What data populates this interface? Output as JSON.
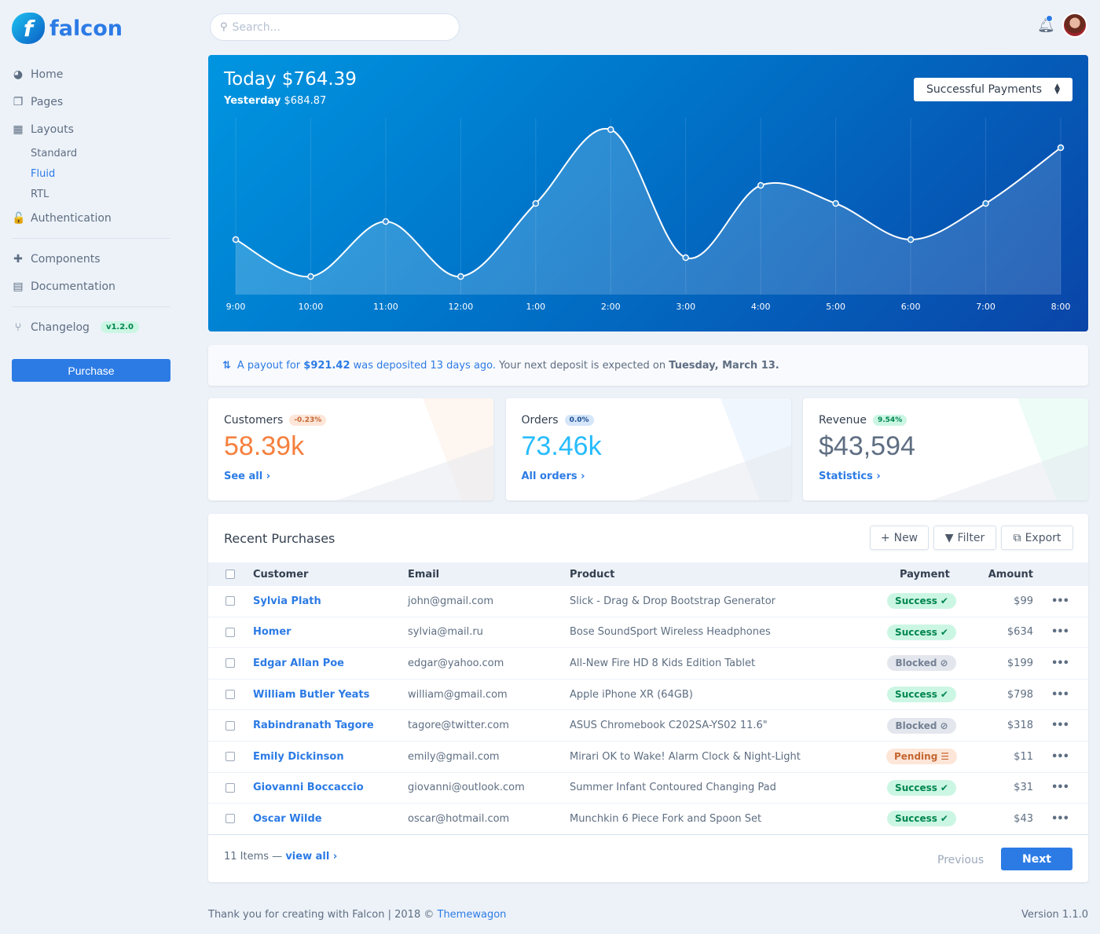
{
  "brand": {
    "name": "falcon",
    "logo_letter": "f"
  },
  "sidebar": {
    "items": [
      {
        "label": "Home",
        "icon": "pie-chart-icon",
        "glyph": "◕"
      },
      {
        "label": "Pages",
        "icon": "copy-icon",
        "glyph": "❐"
      },
      {
        "label": "Layouts",
        "icon": "grid-icon",
        "glyph": "▦"
      }
    ],
    "sub_items": [
      {
        "label": "Standard",
        "active": false
      },
      {
        "label": "Fluid",
        "active": true
      },
      {
        "label": "RTL",
        "active": false
      }
    ],
    "auth": {
      "label": "Authentication",
      "glyph": "🔓"
    },
    "group2": [
      {
        "label": "Components",
        "glyph": "✚"
      },
      {
        "label": "Documentation",
        "glyph": "▤"
      }
    ],
    "changelog": {
      "label": "Changelog",
      "badge": "v1.2.0",
      "glyph": "⑂"
    },
    "purchase_label": "Purchase"
  },
  "search": {
    "placeholder": "Search..."
  },
  "chart": {
    "today": "Today $764.39",
    "yesterday_label": "Yesterday",
    "yesterday_value": "$684.87",
    "select_value": "Successful Payments"
  },
  "chart_data": {
    "type": "line",
    "categories": [
      "9:00",
      "10:00",
      "11:00",
      "12:00",
      "1:00",
      "2:00",
      "3:00",
      "4:00",
      "5:00",
      "6:00",
      "7:00",
      "8:00"
    ],
    "values": [
      70,
      23,
      93,
      23,
      116,
      210,
      47,
      139,
      116,
      70,
      116,
      187
    ],
    "ylim": [
      0,
      225
    ],
    "grid": "vertical",
    "area_fill": true
  },
  "notice": {
    "part1": "A payout for",
    "amount": "$921.42",
    "part2": "was deposited 13 days ago.",
    "part3": "Your next deposit is expected on",
    "date": "Tuesday, March 13."
  },
  "stats": [
    {
      "title": "Customers",
      "pill": "-0.23%",
      "value": "58.39k",
      "link": "See all ›",
      "color": "#f5803e",
      "pill_bg": "#fde6d8",
      "pill_fg": "#c46632"
    },
    {
      "title": "Orders",
      "pill": "0.0%",
      "value": "73.46k",
      "link": "All orders ›",
      "color": "#27bcfd",
      "pill_bg": "#d5e5fa",
      "pill_fg": "#1c4f93"
    },
    {
      "title": "Revenue",
      "pill": "9.54%",
      "value": "$43,594",
      "link": "Statistics ›",
      "color": "#5e6e82",
      "pill_bg": "#ccf6e4",
      "pill_fg": "#00864e"
    }
  ],
  "table": {
    "title": "Recent Purchases",
    "buttons": {
      "new": "New",
      "filter": "Filter",
      "export": "Export"
    },
    "headers": {
      "customer": "Customer",
      "email": "Email",
      "product": "Product",
      "payment": "Payment",
      "amount": "Amount"
    },
    "rows": [
      {
        "customer": "Sylvia Plath",
        "email": "john@gmail.com",
        "product": "Slick - Drag & Drop Bootstrap Generator",
        "status": "Success",
        "amount": "$99"
      },
      {
        "customer": "Homer",
        "email": "sylvia@mail.ru",
        "product": "Bose SoundSport Wireless Headphones",
        "status": "Success",
        "amount": "$634"
      },
      {
        "customer": "Edgar Allan Poe",
        "email": "edgar@yahoo.com",
        "product": "All-New Fire HD 8 Kids Edition Tablet",
        "status": "Blocked",
        "amount": "$199"
      },
      {
        "customer": "William Butler Yeats",
        "email": "william@gmail.com",
        "product": "Apple iPhone XR (64GB)",
        "status": "Success",
        "amount": "$798"
      },
      {
        "customer": "Rabindranath Tagore",
        "email": "tagore@twitter.com",
        "product": "ASUS Chromebook C202SA-YS02 11.6\"",
        "status": "Blocked",
        "amount": "$318"
      },
      {
        "customer": "Emily Dickinson",
        "email": "emily@gmail.com",
        "product": "Mirari OK to Wake! Alarm Clock & Night-Light",
        "status": "Pending",
        "amount": "$11"
      },
      {
        "customer": "Giovanni Boccaccio",
        "email": "giovanni@outlook.com",
        "product": "Summer Infant Contoured Changing Pad",
        "status": "Success",
        "amount": "$31"
      },
      {
        "customer": "Oscar Wilde",
        "email": "oscar@hotmail.com",
        "product": "Munchkin 6 Piece Fork and Spoon Set",
        "status": "Success",
        "amount": "$43"
      }
    ],
    "footer": {
      "count": "11 Items —",
      "view_all": "view all ›",
      "previous": "Previous",
      "next": "Next"
    }
  },
  "footer": {
    "text": "Thank you for creating with Falcon | 2018 ©",
    "link": "Themewagon",
    "version": "Version 1.1.0"
  }
}
